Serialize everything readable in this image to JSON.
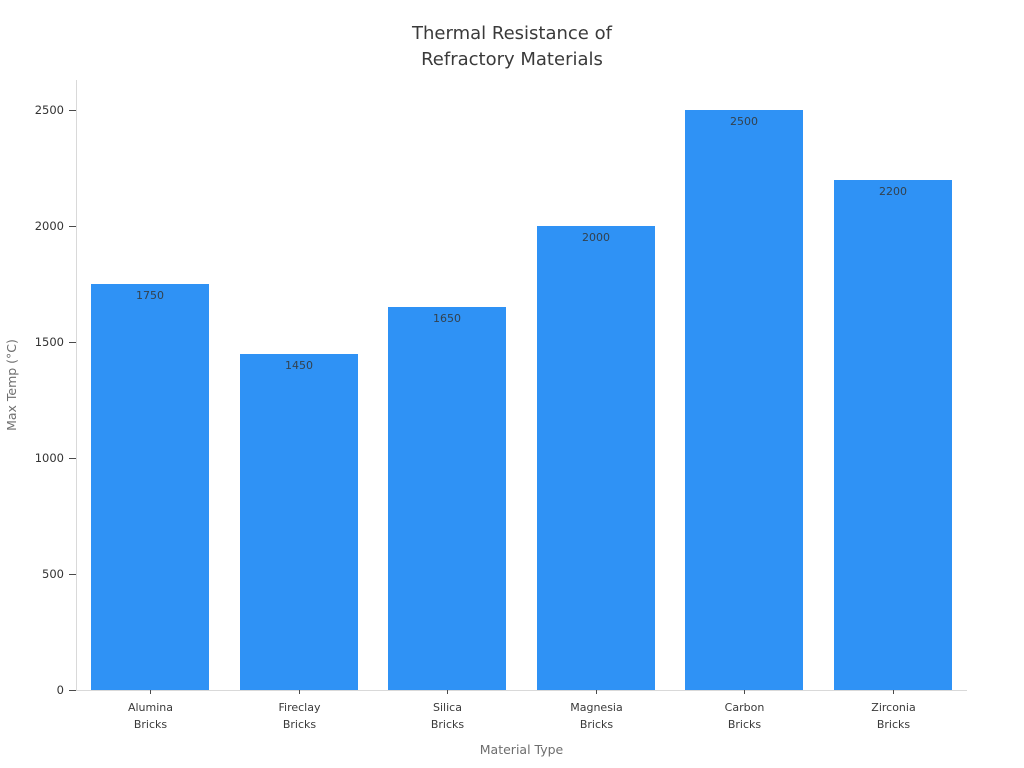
{
  "chart_data": {
    "type": "bar",
    "title": "Thermal Resistance of\nRefractory Materials",
    "xlabel": "Material Type",
    "ylabel": "Max Temp (°C)",
    "categories": [
      "Alumina\nBricks",
      "Fireclay\nBricks",
      "Silica\nBricks",
      "Magnesia\nBricks",
      "Carbon\nBricks",
      "Zirconia\nBricks"
    ],
    "values": [
      1750,
      1450,
      1650,
      2000,
      2500,
      2200
    ],
    "bar_labels": [
      "1750",
      "1450",
      "1650",
      "2000",
      "2500",
      "2200"
    ],
    "yticks": [
      0,
      500,
      1000,
      1500,
      2000,
      2500
    ],
    "ylim": [
      0,
      2630
    ],
    "grid": false,
    "legend": "none",
    "colors": {
      "bar": "#2F92F5",
      "title_text": "#3a3a3a",
      "tick_text": "#333333",
      "category_text": "#3a3a3a",
      "axis_label_text": "#6e6e6e",
      "bar_value_text": "#33414d",
      "axis_line": "#d9d9d9",
      "tick_mark": "#4a4a4a",
      "background": "#ffffff"
    }
  }
}
